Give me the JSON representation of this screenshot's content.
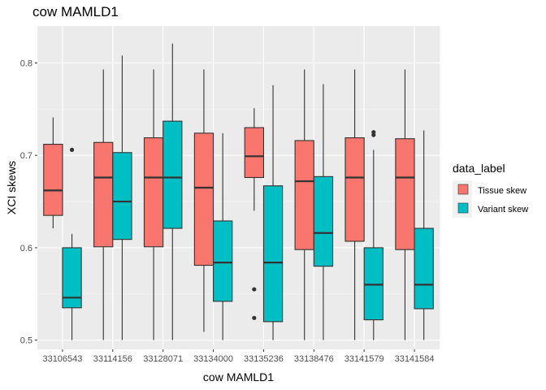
{
  "chart_data": {
    "type": "boxplot",
    "title": "cow MAMLD1",
    "xlabel": "cow MAMLD1",
    "ylabel": "XCI skews",
    "ylim": [
      0.49,
      0.84
    ],
    "yticks": [
      0.5,
      0.6,
      0.7,
      0.8
    ],
    "ytick_labels": [
      "0.5",
      "0.6",
      "0.7",
      "0.8"
    ],
    "grid": true,
    "legend": {
      "title": "data_label",
      "placement": "right",
      "entries": [
        {
          "name": "Tissue skew",
          "color": "#F8766D"
        },
        {
          "name": "Variant skew",
          "color": "#00BFC4"
        }
      ]
    },
    "categories": [
      "33106543",
      "33114156",
      "33128071",
      "33134000",
      "33135236",
      "33138476",
      "33141579",
      "33141584"
    ],
    "series": [
      {
        "name": "Tissue skew",
        "color": "#F8766D",
        "boxes": [
          {
            "min": 0.621,
            "q1": 0.635,
            "median": 0.662,
            "q3": 0.712,
            "max": 0.741,
            "outliers": []
          },
          {
            "min": 0.5,
            "q1": 0.601,
            "median": 0.676,
            "q3": 0.714,
            "max": 0.793,
            "outliers": []
          },
          {
            "min": 0.5,
            "q1": 0.601,
            "median": 0.676,
            "q3": 0.719,
            "max": 0.793,
            "outliers": []
          },
          {
            "min": 0.509,
            "q1": 0.581,
            "median": 0.665,
            "q3": 0.724,
            "max": 0.793,
            "outliers": []
          },
          {
            "min": 0.64,
            "q1": 0.676,
            "median": 0.699,
            "q3": 0.73,
            "max": 0.751,
            "outliers": [
              0.555,
              0.524
            ]
          },
          {
            "min": 0.5,
            "q1": 0.598,
            "median": 0.672,
            "q3": 0.716,
            "max": 0.793,
            "outliers": []
          },
          {
            "min": 0.5,
            "q1": 0.607,
            "median": 0.676,
            "q3": 0.719,
            "max": 0.793,
            "outliers": []
          },
          {
            "min": 0.5,
            "q1": 0.598,
            "median": 0.676,
            "q3": 0.718,
            "max": 0.793,
            "outliers": []
          }
        ]
      },
      {
        "name": "Variant skew",
        "color": "#00BFC4",
        "boxes": [
          {
            "min": 0.5,
            "q1": 0.535,
            "median": 0.546,
            "q3": 0.6,
            "max": 0.615,
            "outliers": [
              0.706
            ]
          },
          {
            "min": 0.5,
            "q1": 0.609,
            "median": 0.65,
            "q3": 0.703,
            "max": 0.808,
            "outliers": []
          },
          {
            "min": 0.5,
            "q1": 0.621,
            "median": 0.676,
            "q3": 0.737,
            "max": 0.821,
            "outliers": []
          },
          {
            "min": 0.5,
            "q1": 0.542,
            "median": 0.584,
            "q3": 0.629,
            "max": 0.724,
            "outliers": []
          },
          {
            "min": 0.5,
            "q1": 0.52,
            "median": 0.584,
            "q3": 0.667,
            "max": 0.776,
            "outliers": []
          },
          {
            "min": 0.5,
            "q1": 0.58,
            "median": 0.616,
            "q3": 0.677,
            "max": 0.777,
            "outliers": []
          },
          {
            "min": 0.5,
            "q1": 0.522,
            "median": 0.56,
            "q3": 0.6,
            "max": 0.706,
            "outliers": [
              0.722,
              0.725
            ]
          },
          {
            "min": 0.5,
            "q1": 0.534,
            "median": 0.56,
            "q3": 0.621,
            "max": 0.727,
            "outliers": []
          }
        ]
      }
    ]
  }
}
